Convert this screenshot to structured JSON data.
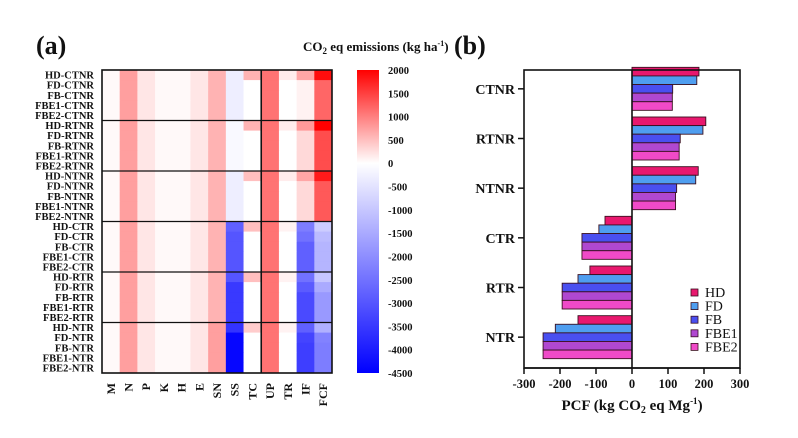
{
  "figure": {
    "panel_a_label": "(a)",
    "panel_b_label": "(b)"
  },
  "chart_data": [
    {
      "type": "heatmap",
      "title": "CO2 eq emissions (kg ha-1)",
      "title_parts": {
        "pre": "CO",
        "sub": "2",
        "mid": " eq emissions (kg ha",
        "sup": "-1",
        "post": ")"
      },
      "rows": [
        "HD-CTNR",
        "FD-CTNR",
        "FB-CTNR",
        "FBE1-CTNR",
        "FBE2-CTNR",
        "HD-RTNR",
        "FD-RTNR",
        "FB-RTNR",
        "FBE1-RTNR",
        "FBE2-RTNR",
        "HD-NTNR",
        "FD-NTNR",
        "FB-NTNR",
        "FBE1-NTNR",
        "FBE2-NTNR",
        "HD-CTR",
        "FD-CTR",
        "FB-CTR",
        "FBE1-CTR",
        "FBE2-CTR",
        "HD-RTR",
        "FD-RTR",
        "FB-RTR",
        "FBE1-RTR",
        "FBE2-RTR",
        "HD-NTR",
        "FD-NTR",
        "FB-NTR",
        "FBE1-NTR",
        "FBE2-NTR"
      ],
      "columns": [
        "M",
        "N",
        "P",
        "K",
        "H",
        "E",
        "SN",
        "SS",
        "TC",
        "UP",
        "TR",
        "IF",
        "FCF"
      ],
      "values": [
        [
          50,
          750,
          200,
          50,
          50,
          200,
          600,
          -300,
          600,
          1100,
          150,
          700,
          1900
        ],
        [
          50,
          750,
          200,
          50,
          50,
          200,
          600,
          -300,
          0,
          1100,
          0,
          100,
          1200
        ],
        [
          50,
          750,
          200,
          50,
          50,
          200,
          600,
          -300,
          0,
          1100,
          0,
          100,
          1200
        ],
        [
          50,
          750,
          200,
          50,
          50,
          200,
          600,
          -300,
          0,
          1100,
          0,
          100,
          1200
        ],
        [
          50,
          750,
          200,
          50,
          50,
          200,
          600,
          -300,
          0,
          1100,
          0,
          100,
          1200
        ],
        [
          50,
          750,
          200,
          50,
          50,
          200,
          600,
          -100,
          600,
          1100,
          150,
          800,
          2000
        ],
        [
          50,
          750,
          200,
          50,
          50,
          200,
          600,
          -100,
          0,
          1100,
          0,
          300,
          1400
        ],
        [
          50,
          750,
          200,
          50,
          50,
          200,
          600,
          -100,
          0,
          1100,
          0,
          300,
          1400
        ],
        [
          50,
          750,
          200,
          50,
          50,
          200,
          600,
          -100,
          0,
          1100,
          0,
          300,
          1400
        ],
        [
          50,
          750,
          200,
          50,
          50,
          200,
          600,
          -100,
          0,
          1100,
          0,
          300,
          1400
        ],
        [
          50,
          750,
          200,
          50,
          50,
          200,
          600,
          -300,
          500,
          1100,
          150,
          700,
          1800
        ],
        [
          50,
          750,
          200,
          50,
          50,
          200,
          600,
          -300,
          0,
          1100,
          0,
          300,
          1300
        ],
        [
          50,
          750,
          200,
          50,
          50,
          200,
          600,
          -300,
          0,
          1100,
          0,
          300,
          1300
        ],
        [
          50,
          750,
          200,
          50,
          50,
          200,
          600,
          -300,
          0,
          1100,
          0,
          300,
          1300
        ],
        [
          50,
          750,
          200,
          50,
          50,
          200,
          600,
          -300,
          0,
          1100,
          0,
          300,
          1300
        ],
        [
          50,
          750,
          200,
          50,
          50,
          200,
          600,
          -2800,
          500,
          1100,
          100,
          -2300,
          -900
        ],
        [
          50,
          750,
          200,
          50,
          50,
          200,
          600,
          -3000,
          0,
          1100,
          0,
          -2500,
          -1200
        ],
        [
          50,
          750,
          200,
          50,
          50,
          200,
          600,
          -3000,
          0,
          1100,
          0,
          -2800,
          -1300
        ],
        [
          50,
          750,
          200,
          50,
          50,
          200,
          600,
          -3000,
          0,
          1100,
          0,
          -2800,
          -1300
        ],
        [
          50,
          750,
          200,
          50,
          50,
          200,
          600,
          -3000,
          0,
          1100,
          0,
          -2800,
          -1300
        ],
        [
          50,
          750,
          200,
          50,
          50,
          200,
          600,
          -3000,
          500,
          1100,
          100,
          -2500,
          -1000
        ],
        [
          50,
          750,
          200,
          50,
          50,
          200,
          600,
          -3500,
          0,
          1100,
          0,
          -2900,
          -1500
        ],
        [
          50,
          750,
          200,
          50,
          50,
          200,
          600,
          -3500,
          0,
          1100,
          0,
          -3200,
          -1800
        ],
        [
          50,
          750,
          200,
          50,
          50,
          200,
          600,
          -3500,
          0,
          1100,
          0,
          -3200,
          -1800
        ],
        [
          50,
          750,
          200,
          50,
          50,
          200,
          600,
          -3500,
          0,
          1100,
          0,
          -3200,
          -1800
        ],
        [
          50,
          750,
          200,
          50,
          50,
          200,
          750,
          -3600,
          400,
          1100,
          100,
          -2800,
          -1400
        ],
        [
          50,
          750,
          200,
          50,
          50,
          200,
          750,
          -4400,
          0,
          1100,
          0,
          -3300,
          -2200
        ],
        [
          50,
          750,
          200,
          50,
          50,
          200,
          750,
          -4400,
          0,
          1100,
          0,
          -3400,
          -2300
        ],
        [
          50,
          750,
          200,
          50,
          50,
          200,
          750,
          -4400,
          0,
          1100,
          0,
          -3400,
          -2300
        ],
        [
          50,
          750,
          200,
          50,
          50,
          200,
          750,
          -4400,
          0,
          1100,
          0,
          -3400,
          -2300
        ]
      ],
      "row_group_size": 5,
      "column_separator_after": "TC",
      "colorbar": {
        "min": -4500,
        "max": 2000,
        "ticks": [
          2000,
          1500,
          1000,
          500,
          0,
          -500,
          -1000,
          -1500,
          -2000,
          -2500,
          -3000,
          -3500,
          -4000,
          -4500
        ],
        "max_color": "#ff0000",
        "mid_color": "#ffffff",
        "min_color": "#0000ff"
      }
    },
    {
      "type": "bar",
      "orientation": "horizontal",
      "categories": [
        "CTNR",
        "RTNR",
        "NTNR",
        "CTR",
        "RTR",
        "NTR"
      ],
      "series": [
        {
          "name": "HD",
          "color": "#e8186e",
          "values": [
            186,
            205,
            184,
            -75,
            -117,
            -150
          ]
        },
        {
          "name": "FD",
          "color": "#4f9ef0",
          "values": [
            180,
            197,
            177,
            -92,
            -150,
            -213
          ]
        },
        {
          "name": "FB",
          "color": "#4a4ff0",
          "values": [
            113,
            134,
            124,
            -139,
            -194,
            -247
          ]
        },
        {
          "name": "FBE1",
          "color": "#b048d0",
          "values": [
            112,
            131,
            121,
            -139,
            -194,
            -247
          ]
        },
        {
          "name": "FBE2",
          "color": "#f04ac8",
          "values": [
            112,
            131,
            121,
            -139,
            -194,
            -247
          ]
        }
      ],
      "xlabel": "PCF (kg CO2 eq Mg-1)",
      "xlabel_parts": {
        "pre": "PCF (kg CO",
        "sub": "2",
        "mid": " eq Mg",
        "sup": "-1",
        "post": ")"
      },
      "xlim": [
        -300,
        300
      ],
      "xticks": [
        -300,
        -200,
        -100,
        0,
        100,
        200,
        300
      ],
      "legend_position": "bottom-right",
      "grid": false
    }
  ]
}
